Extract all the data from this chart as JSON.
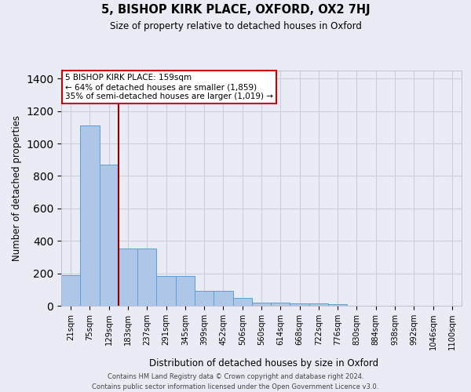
{
  "title": "5, BISHOP KIRK PLACE, OXFORD, OX2 7HJ",
  "subtitle": "Size of property relative to detached houses in Oxford",
  "xlabel": "Distribution of detached houses by size in Oxford",
  "ylabel": "Number of detached properties",
  "categories": [
    "21sqm",
    "75sqm",
    "129sqm",
    "183sqm",
    "237sqm",
    "291sqm",
    "345sqm",
    "399sqm",
    "452sqm",
    "506sqm",
    "560sqm",
    "614sqm",
    "668sqm",
    "722sqm",
    "776sqm",
    "830sqm",
    "884sqm",
    "938sqm",
    "992sqm",
    "1046sqm",
    "1100sqm"
  ],
  "values": [
    190,
    1110,
    870,
    355,
    355,
    185,
    185,
    90,
    90,
    50,
    20,
    20,
    15,
    15,
    10,
    0,
    0,
    0,
    0,
    0,
    0
  ],
  "bar_color": "#aec6e8",
  "bar_edge_color": "#5a9fd4",
  "grid_color": "#ccccdd",
  "bg_color": "#eaecf5",
  "vline_x": 2.5,
  "vline_color": "#8b0000",
  "annotation_lines": [
    "5 BISHOP KIRK PLACE: 159sqm",
    "← 64% of detached houses are smaller (1,859)",
    "35% of semi-detached houses are larger (1,019) →"
  ],
  "annotation_box_color": "#ffffff",
  "annotation_box_edge": "#cc0000",
  "ylim": [
    0,
    1450
  ],
  "yticks": [
    0,
    200,
    400,
    600,
    800,
    1000,
    1200,
    1400
  ],
  "footnote": "Contains HM Land Registry data © Crown copyright and database right 2024.\nContains public sector information licensed under the Open Government Licence v3.0."
}
